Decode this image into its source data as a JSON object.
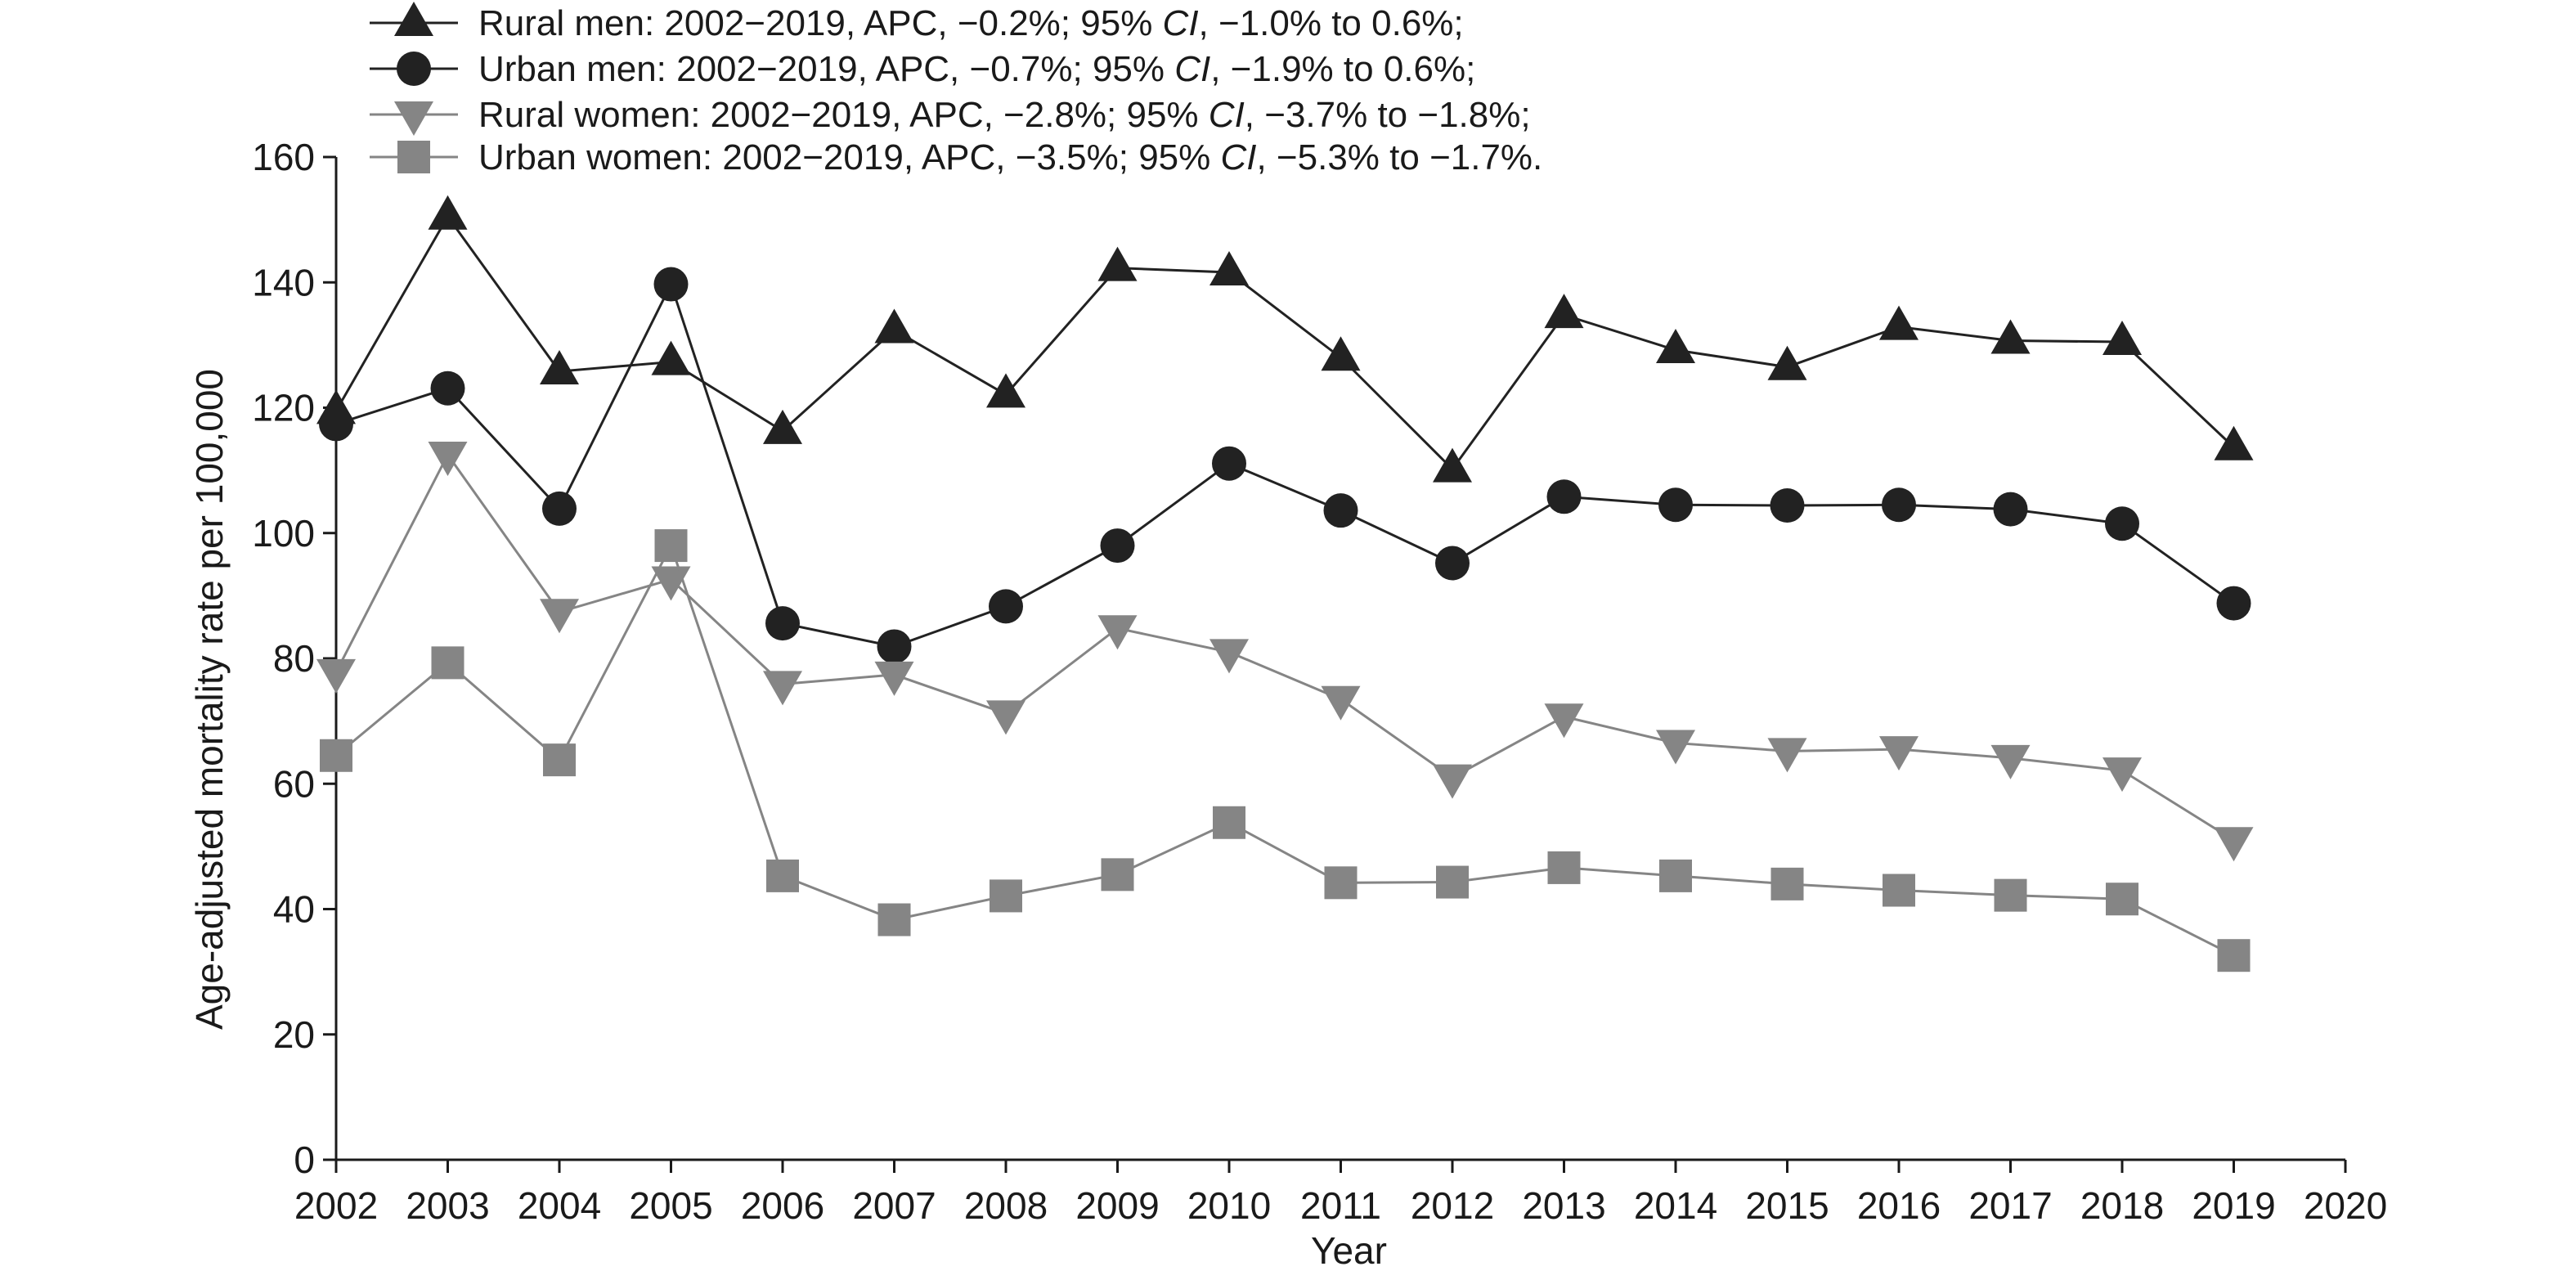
{
  "chart_data": {
    "type": "line",
    "title": "",
    "xlabel": "Year",
    "ylabel": "Age-adjusted mortality rate per 100,000",
    "xlim": [
      2002,
      2020
    ],
    "ylim": [
      0,
      160
    ],
    "x_ticks": [
      2002,
      2003,
      2004,
      2005,
      2006,
      2007,
      2008,
      2009,
      2010,
      2011,
      2012,
      2013,
      2014,
      2015,
      2016,
      2017,
      2018,
      2019,
      2020
    ],
    "y_ticks": [
      0,
      20,
      40,
      60,
      80,
      100,
      120,
      140,
      160
    ],
    "grid": false,
    "legend_position": "top-left",
    "x": [
      2002,
      2003,
      2004,
      2005,
      2006,
      2007,
      2008,
      2009,
      2010,
      2011,
      2012,
      2013,
      2014,
      2015,
      2016,
      2017,
      2018,
      2019
    ],
    "series": [
      {
        "name": "Rural men",
        "legend": {
          "pre": "Rural men: 2002−2019, APC, −0.2%; 95% ",
          "ci": "CI",
          "post": ", −1.0% to 0.6%;"
        },
        "marker": "triangle-up",
        "color": "#222222",
        "values": [
          119.5,
          150.5,
          125.8,
          127.3,
          116.3,
          132.4,
          122.1,
          142.3,
          141.6,
          128.0,
          110.2,
          134.8,
          129.2,
          126.5,
          132.9,
          130.7,
          130.5,
          113.7
        ]
      },
      {
        "name": "Urban men",
        "legend": {
          "pre": "Urban men: 2002−2019, APC, −0.7%; 95% ",
          "ci": "CI",
          "post": ", −1.9% to 0.6%;"
        },
        "marker": "circle",
        "color": "#222222",
        "values": [
          117.4,
          123.1,
          103.9,
          139.7,
          85.6,
          81.9,
          88.3,
          98.0,
          111.1,
          103.6,
          95.2,
          105.8,
          104.5,
          104.4,
          104.5,
          103.8,
          101.5,
          88.8
        ]
      },
      {
        "name": "Rural women",
        "legend": {
          "pre": "Rural women: 2002−2019, APC, −2.8%; 95% ",
          "ci": "CI",
          "post": ", −3.7% to −1.8%;"
        },
        "marker": "triangle-down",
        "color": "#858585",
        "values": [
          77.8,
          112.5,
          87.4,
          92.6,
          75.9,
          77.4,
          71.2,
          84.8,
          81.0,
          73.5,
          61.0,
          70.7,
          66.5,
          65.2,
          65.5,
          64.1,
          62.1,
          51.0
        ]
      },
      {
        "name": "Urban women",
        "legend": {
          "pre": "Urban women: 2002−2019, APC, −3.5%; 95% ",
          "ci": "CI",
          "post": ", −5.3% to −1.7%."
        },
        "marker": "square",
        "color": "#858585",
        "values": [
          64.5,
          79.3,
          63.8,
          98.0,
          45.3,
          38.3,
          42.1,
          45.5,
          53.8,
          44.2,
          44.3,
          46.6,
          45.3,
          44.0,
          43.0,
          42.2,
          41.6,
          32.6
        ]
      }
    ]
  }
}
